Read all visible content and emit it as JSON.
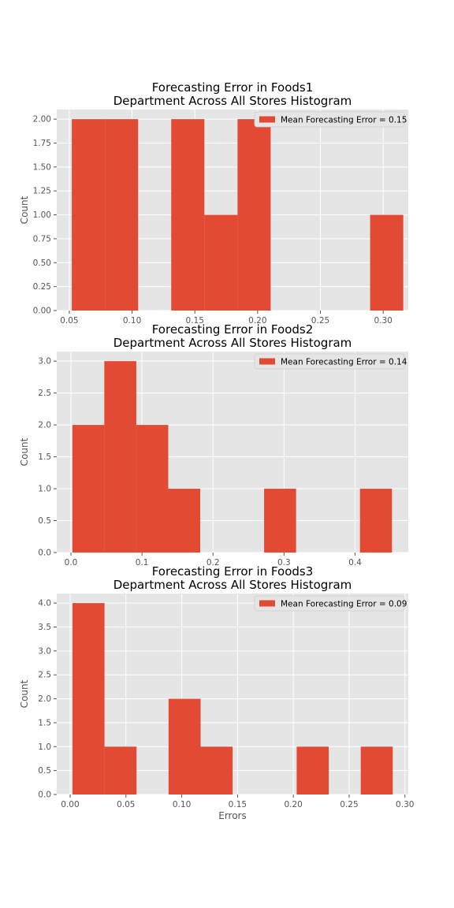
{
  "colors": {
    "bar": "#e24a33",
    "plot_background": "#e5e5e5",
    "grid": "#ffffff",
    "tick_text": "#555555"
  },
  "chart_data": [
    {
      "type": "bar",
      "title": [
        "Forecasting Error in Foods1",
        "Department Across All Stores Histogram"
      ],
      "xlabel": "",
      "ylabel": "Count",
      "legend": {
        "label": "Mean Forecasting Error = 0.15",
        "placement": "top-right"
      },
      "grid": true,
      "xlim": [
        0.04,
        0.32
      ],
      "ylim": [
        0,
        2.1
      ],
      "xticks": [
        0.05,
        0.1,
        0.15,
        0.2,
        0.25,
        0.3
      ],
      "xtick_labels": [
        "0.05",
        "0.10",
        "0.15",
        "0.20",
        "0.25",
        "0.30"
      ],
      "yticks": [
        0,
        0.25,
        0.5,
        0.75,
        1.0,
        1.25,
        1.5,
        1.75,
        2.0
      ],
      "ytick_labels": [
        "0.00",
        "0.25",
        "0.50",
        "0.75",
        "1.00",
        "1.25",
        "1.50",
        "1.75",
        "2.00"
      ],
      "bins": [
        {
          "x0": 0.052,
          "x1": 0.0784,
          "count": 2
        },
        {
          "x0": 0.0784,
          "x1": 0.1048,
          "count": 2
        },
        {
          "x0": 0.1048,
          "x1": 0.1312,
          "count": 0
        },
        {
          "x0": 0.1312,
          "x1": 0.1576,
          "count": 2
        },
        {
          "x0": 0.1576,
          "x1": 0.184,
          "count": 1
        },
        {
          "x0": 0.184,
          "x1": 0.2104,
          "count": 2
        },
        {
          "x0": 0.2104,
          "x1": 0.2368,
          "count": 0
        },
        {
          "x0": 0.2368,
          "x1": 0.2632,
          "count": 0
        },
        {
          "x0": 0.2632,
          "x1": 0.2896,
          "count": 0
        },
        {
          "x0": 0.2896,
          "x1": 0.316,
          "count": 1
        }
      ]
    },
    {
      "type": "bar",
      "title": [
        "Forecasting Error in Foods2",
        "Department Across All Stores Histogram"
      ],
      "xlabel": "",
      "ylabel": "Count",
      "legend": {
        "label": "Mean Forecasting Error = 0.14",
        "placement": "top-right"
      },
      "grid": true,
      "xlim": [
        -0.02,
        0.475
      ],
      "ylim": [
        0,
        3.15
      ],
      "xticks": [
        0.0,
        0.1,
        0.2,
        0.3,
        0.4
      ],
      "xtick_labels": [
        "0.0",
        "0.1",
        "0.2",
        "0.3",
        "0.4"
      ],
      "yticks": [
        0,
        0.5,
        1.0,
        1.5,
        2.0,
        2.5,
        3.0
      ],
      "ytick_labels": [
        "0.0",
        "0.5",
        "1.0",
        "1.5",
        "2.0",
        "2.5",
        "3.0"
      ],
      "bins": [
        {
          "x0": 0.002,
          "x1": 0.047,
          "count": 2
        },
        {
          "x0": 0.047,
          "x1": 0.092,
          "count": 3
        },
        {
          "x0": 0.092,
          "x1": 0.137,
          "count": 2
        },
        {
          "x0": 0.137,
          "x1": 0.182,
          "count": 1
        },
        {
          "x0": 0.182,
          "x1": 0.227,
          "count": 0
        },
        {
          "x0": 0.227,
          "x1": 0.272,
          "count": 0
        },
        {
          "x0": 0.272,
          "x1": 0.317,
          "count": 1
        },
        {
          "x0": 0.317,
          "x1": 0.362,
          "count": 0
        },
        {
          "x0": 0.362,
          "x1": 0.407,
          "count": 0
        },
        {
          "x0": 0.407,
          "x1": 0.452,
          "count": 1
        }
      ]
    },
    {
      "type": "bar",
      "title": [
        "Forecasting Error in Foods3",
        "Department Across All Stores Histogram"
      ],
      "xlabel": "Errors",
      "ylabel": "Count",
      "legend": {
        "label": "Mean Forecasting Error = 0.09",
        "placement": "top-right"
      },
      "grid": true,
      "xlim": [
        -0.012,
        0.303
      ],
      "ylim": [
        0,
        4.2
      ],
      "xticks": [
        0.0,
        0.05,
        0.1,
        0.15,
        0.2,
        0.25,
        0.3
      ],
      "xtick_labels": [
        "0.00",
        "0.05",
        "0.10",
        "0.15",
        "0.20",
        "0.25",
        "0.30"
      ],
      "yticks": [
        0,
        0.5,
        1.0,
        1.5,
        2.0,
        2.5,
        3.0,
        3.5,
        4.0
      ],
      "ytick_labels": [
        "0.0",
        "0.5",
        "1.0",
        "1.5",
        "2.0",
        "2.5",
        "3.0",
        "3.5",
        "4.0"
      ],
      "bins": [
        {
          "x0": 0.0021,
          "x1": 0.0308,
          "count": 4
        },
        {
          "x0": 0.0308,
          "x1": 0.0595,
          "count": 1
        },
        {
          "x0": 0.0595,
          "x1": 0.0882,
          "count": 0
        },
        {
          "x0": 0.0882,
          "x1": 0.1169,
          "count": 2
        },
        {
          "x0": 0.1169,
          "x1": 0.1456,
          "count": 1
        },
        {
          "x0": 0.1456,
          "x1": 0.1743,
          "count": 0
        },
        {
          "x0": 0.1743,
          "x1": 0.203,
          "count": 0
        },
        {
          "x0": 0.203,
          "x1": 0.2317,
          "count": 1
        },
        {
          "x0": 0.2317,
          "x1": 0.2604,
          "count": 0
        },
        {
          "x0": 0.2604,
          "x1": 0.2891,
          "count": 1
        }
      ]
    }
  ]
}
